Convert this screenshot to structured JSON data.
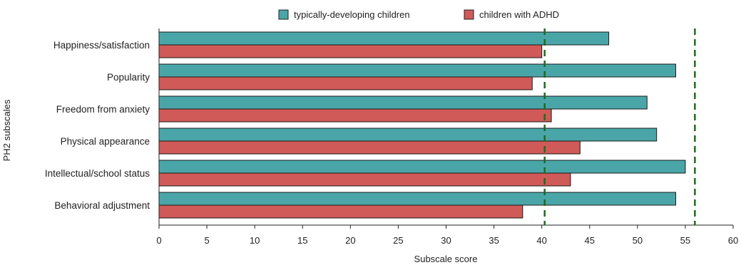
{
  "chart_data": {
    "type": "bar",
    "orientation": "horizontal",
    "categories": [
      "Happiness/satisfaction",
      "Popularity",
      "Freedom from anxiety",
      "Physical appearance",
      "Intellectual/school status",
      "Behavioral adjustment"
    ],
    "series": [
      {
        "name": "typically-developing children",
        "color": "#4aa5a8",
        "values": [
          47,
          54,
          51,
          52,
          55,
          54
        ]
      },
      {
        "name": "children with ADHD",
        "color": "#d05a58",
        "values": [
          40,
          39,
          41,
          44,
          43,
          38
        ]
      }
    ],
    "xlabel": "Subscale score",
    "ylabel": "PH2 subscales",
    "xlim": [
      0,
      60
    ],
    "xticks": [
      0,
      5,
      10,
      15,
      20,
      25,
      30,
      35,
      40,
      45,
      50,
      55,
      60
    ],
    "reference_lines": [
      {
        "value": 40.3,
        "style": "dashed",
        "color": "#1e6b1e"
      },
      {
        "value": 56,
        "style": "dashed",
        "color": "#1e6b1e"
      }
    ],
    "legend": {
      "position": "top-center"
    },
    "grid": false
  }
}
